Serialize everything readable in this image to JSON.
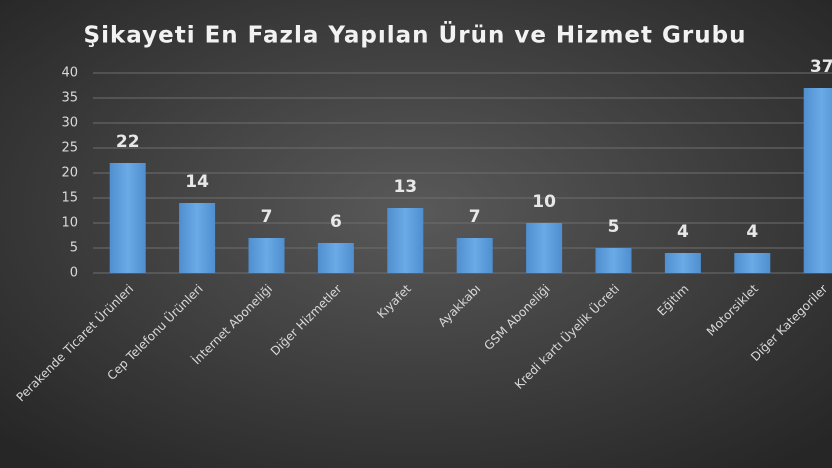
{
  "chart_data": {
    "type": "bar",
    "title": "Şikayeti En Fazla Yapılan Ürün ve Hizmet Grubu",
    "categories": [
      "Perakende Ticaret Ürünleri",
      "Cep Telefonu Ürünleri",
      "İnternet Aboneliği",
      "Diğer Hizmetler",
      "Kıyafet",
      "Ayakkabı",
      "GSM Aboneliği",
      "Kredi kartı Üyelik Ücreti",
      "Eğitim",
      "Motorsiklet",
      "Diğer Kategoriler"
    ],
    "values": [
      22,
      14,
      7,
      6,
      13,
      7,
      10,
      5,
      4,
      4,
      37
    ],
    "color": "#5b9bd5",
    "ylim": [
      0,
      40
    ],
    "yticks": [
      0,
      5,
      10,
      15,
      20,
      25,
      30,
      35,
      40
    ],
    "grid": true
  }
}
